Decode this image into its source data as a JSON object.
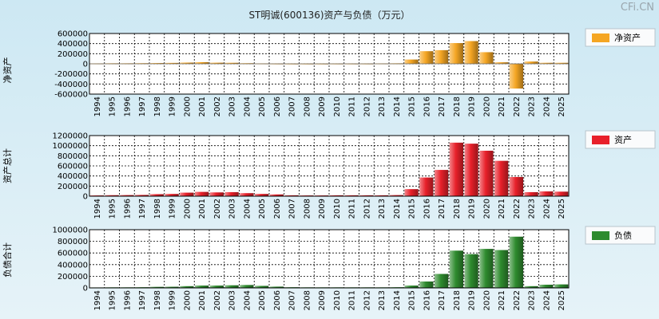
{
  "title": "ST明诚(600136)资产与负债（万元）",
  "watermark": "CFi.CN",
  "years": [
    "1994",
    "1995",
    "1996",
    "1997",
    "1998",
    "1999",
    "2000",
    "2001",
    "2002",
    "2003",
    "2004",
    "2005",
    "2006",
    "2007",
    "2008",
    "2009",
    "2010",
    "2011",
    "2012",
    "2013",
    "2014",
    "2015",
    "2016",
    "2017",
    "2018",
    "2019",
    "2020",
    "2021",
    "2022",
    "2023",
    "2024",
    "2025"
  ],
  "chart_data": [
    {
      "type": "bar",
      "ylabel": "净资产",
      "legend": "净资产",
      "legend_position": "right",
      "color": "#f5a623",
      "grid": true,
      "ylim": [
        -600000,
        600000
      ],
      "yticks": [
        600000,
        400000,
        200000,
        0,
        -200000,
        -400000,
        -600000
      ],
      "categories": [
        "1994",
        "1995",
        "1996",
        "1997",
        "1998",
        "1999",
        "2000",
        "2001",
        "2002",
        "2003",
        "2004",
        "2005",
        "2006",
        "2007",
        "2008",
        "2009",
        "2010",
        "2011",
        "2012",
        "2013",
        "2014",
        "2015",
        "2016",
        "2017",
        "2018",
        "2019",
        "2020",
        "2021",
        "2022",
        "2023",
        "2024",
        "2025"
      ],
      "values": [
        8000,
        10000,
        10000,
        12000,
        15000,
        18000,
        24000,
        32000,
        22000,
        20000,
        12000,
        8000,
        6000,
        5000,
        5000,
        5000,
        6000,
        6000,
        6000,
        8000,
        10000,
        85000,
        250000,
        270000,
        410000,
        450000,
        230000,
        30000,
        -490000,
        45000,
        20000,
        20000
      ]
    },
    {
      "type": "bar",
      "ylabel": "资产总计",
      "legend": "资产",
      "legend_position": "right",
      "color": "#e8202a",
      "grid": true,
      "ylim": [
        0,
        1200000
      ],
      "yticks": [
        1200000,
        1000000,
        800000,
        600000,
        400000,
        200000,
        0
      ],
      "categories": [
        "1994",
        "1995",
        "1996",
        "1997",
        "1998",
        "1999",
        "2000",
        "2001",
        "2002",
        "2003",
        "2004",
        "2005",
        "2006",
        "2007",
        "2008",
        "2009",
        "2010",
        "2011",
        "2012",
        "2013",
        "2014",
        "2015",
        "2016",
        "2017",
        "2018",
        "2019",
        "2020",
        "2021",
        "2022",
        "2023",
        "2024",
        "2025"
      ],
      "values": [
        15000,
        20000,
        22000,
        25000,
        40000,
        45000,
        70000,
        85000,
        75000,
        80000,
        60000,
        45000,
        35000,
        18000,
        15000,
        15000,
        18000,
        18000,
        18000,
        18000,
        22000,
        140000,
        370000,
        520000,
        1060000,
        1040000,
        900000,
        700000,
        380000,
        80000,
        95000,
        90000
      ]
    },
    {
      "type": "bar",
      "ylabel": "负债合计",
      "legend": "负债",
      "legend_position": "right",
      "color": "#2e8b2e",
      "grid": true,
      "ylim": [
        0,
        1000000
      ],
      "yticks": [
        1000000,
        800000,
        600000,
        400000,
        200000,
        0
      ],
      "categories": [
        "1994",
        "1995",
        "1996",
        "1997",
        "1998",
        "1999",
        "2000",
        "2001",
        "2002",
        "2003",
        "2004",
        "2005",
        "2006",
        "2007",
        "2008",
        "2009",
        "2010",
        "2011",
        "2012",
        "2013",
        "2014",
        "2015",
        "2016",
        "2017",
        "2018",
        "2019",
        "2020",
        "2021",
        "2022",
        "2023",
        "2024",
        "2025"
      ],
      "values": [
        8000,
        10000,
        10000,
        12000,
        18000,
        20000,
        30000,
        40000,
        40000,
        45000,
        50000,
        35000,
        22000,
        12000,
        10000,
        10000,
        10000,
        10000,
        10000,
        10000,
        12000,
        40000,
        110000,
        240000,
        640000,
        580000,
        670000,
        650000,
        880000,
        30000,
        55000,
        60000
      ]
    }
  ]
}
